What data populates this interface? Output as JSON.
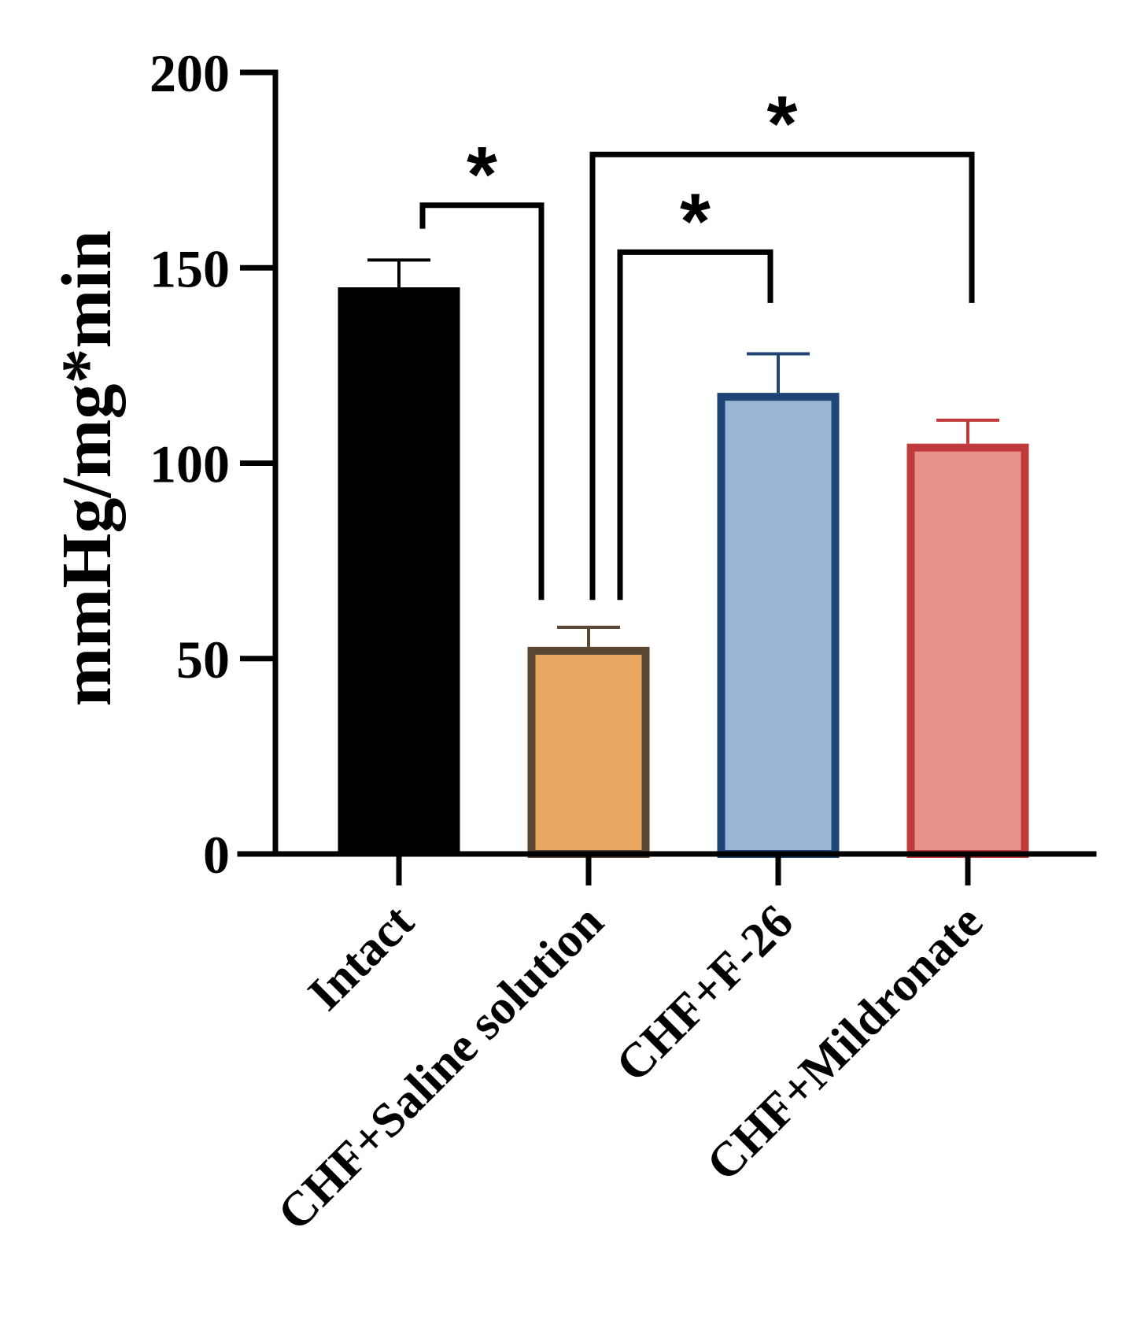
{
  "chart_data": {
    "type": "bar",
    "title": "",
    "xlabel": "",
    "ylabel": "mmHg/mg*min",
    "ylim": [
      0,
      200
    ],
    "yticks": [
      0,
      50,
      100,
      150,
      200
    ],
    "categories": [
      "Intact",
      "CHF+Saline solution",
      "CHF+F-26",
      "CHF+Mildronate"
    ],
    "values": [
      145,
      53,
      118,
      105
    ],
    "errors": [
      7,
      5,
      10,
      6
    ],
    "fill_colors": [
      "#000000",
      "#E8A661",
      "#9BB4D5",
      "#E8928C"
    ],
    "edge_colors": [
      "#000000",
      "#5A4632",
      "#1F4576",
      "#C0393B"
    ],
    "error_colors": [
      "#000000",
      "#5A4632",
      "#1F4576",
      "#C0393B"
    ],
    "significance": [
      {
        "from": 0,
        "to": 1,
        "label": "*",
        "y": 166
      },
      {
        "from": 1,
        "to": 2,
        "label": "*",
        "y": 154
      },
      {
        "from": 1,
        "to": 3,
        "label": "*",
        "y": 179
      }
    ]
  }
}
